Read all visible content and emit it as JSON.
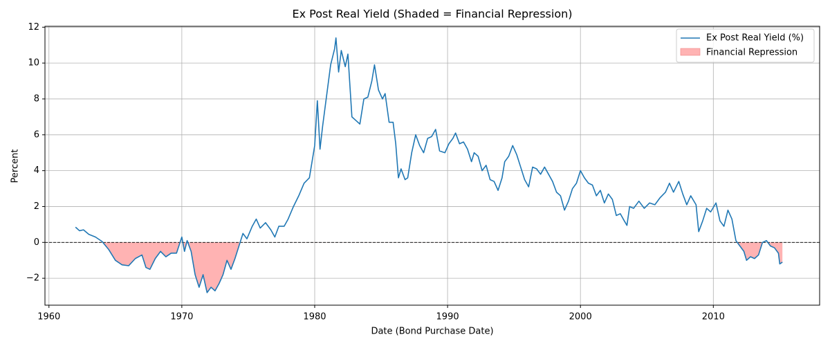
{
  "chart_data": {
    "type": "line",
    "title": "Ex Post Real Yield (Shaded = Financial Repression)",
    "xlabel": "Date (Bond Purchase Date)",
    "ylabel": "Percent",
    "x": [
      1962.0,
      1962.3,
      1962.6,
      1963.0,
      1963.5,
      1964.0,
      1964.5,
      1965.0,
      1965.5,
      1966.0,
      1966.5,
      1967.0,
      1967.3,
      1967.6,
      1968.0,
      1968.4,
      1968.8,
      1969.2,
      1969.6,
      1970.0,
      1970.2,
      1970.4,
      1970.7,
      1971.0,
      1971.3,
      1971.6,
      1971.9,
      1972.2,
      1972.5,
      1972.8,
      1973.1,
      1973.4,
      1973.7,
      1974.0,
      1974.3,
      1974.6,
      1974.9,
      1975.3,
      1975.6,
      1975.9,
      1976.3,
      1976.7,
      1977.0,
      1977.3,
      1977.7,
      1978.0,
      1978.4,
      1978.8,
      1979.2,
      1979.6,
      1980.0,
      1980.2,
      1980.4,
      1980.6,
      1980.9,
      1981.2,
      1981.5,
      1981.6,
      1981.8,
      1982.0,
      1982.3,
      1982.5,
      1982.8,
      1983.1,
      1983.4,
      1983.7,
      1984.0,
      1984.3,
      1984.5,
      1984.8,
      1985.1,
      1985.3,
      1985.6,
      1985.9,
      1986.1,
      1986.3,
      1986.5,
      1986.8,
      1987.0,
      1987.3,
      1987.6,
      1987.9,
      1988.2,
      1988.5,
      1988.8,
      1989.1,
      1989.4,
      1989.8,
      1990.1,
      1990.4,
      1990.6,
      1990.9,
      1991.2,
      1991.5,
      1991.8,
      1992.0,
      1992.3,
      1992.6,
      1992.9,
      1993.2,
      1993.5,
      1993.8,
      1994.1,
      1994.3,
      1994.6,
      1994.9,
      1995.2,
      1995.5,
      1995.8,
      1996.1,
      1996.4,
      1996.7,
      1997.0,
      1997.3,
      1997.6,
      1997.9,
      1998.2,
      1998.5,
      1998.8,
      1999.1,
      1999.4,
      1999.7,
      2000.0,
      2000.3,
      2000.6,
      2000.9,
      2001.2,
      2001.5,
      2001.8,
      2002.1,
      2002.4,
      2002.7,
      2003.0,
      2003.3,
      2003.5,
      2003.7,
      2004.0,
      2004.4,
      2004.8,
      2005.2,
      2005.6,
      2006.0,
      2006.4,
      2006.7,
      2007.0,
      2007.4,
      2007.7,
      2008.0,
      2008.3,
      2008.7,
      2008.9,
      2009.2,
      2009.5,
      2009.8,
      2010.2,
      2010.5,
      2010.8,
      2011.1,
      2011.4,
      2011.7,
      2012.0,
      2012.3,
      2012.5,
      2012.8,
      2013.1,
      2013.4,
      2013.7,
      2014.0,
      2014.3,
      2014.6,
      2014.9,
      2015.0,
      2015.2
    ],
    "series": [
      {
        "name": "Ex Post Real Yield (%)",
        "color": "#1f77b4",
        "values": [
          0.85,
          0.65,
          0.7,
          0.45,
          0.3,
          0.05,
          -0.4,
          -1.0,
          -1.25,
          -1.3,
          -0.9,
          -0.7,
          -1.4,
          -1.5,
          -0.9,
          -0.5,
          -0.8,
          -0.6,
          -0.6,
          0.3,
          -0.5,
          0.1,
          -0.5,
          -1.8,
          -2.5,
          -1.8,
          -2.8,
          -2.5,
          -2.7,
          -2.3,
          -1.8,
          -1.0,
          -1.5,
          -0.9,
          -0.2,
          0.5,
          0.2,
          0.9,
          1.3,
          0.8,
          1.1,
          0.7,
          0.3,
          0.9,
          0.9,
          1.3,
          2.0,
          2.6,
          3.3,
          3.6,
          5.4,
          7.9,
          5.2,
          6.5,
          8.2,
          9.9,
          10.8,
          11.4,
          9.5,
          10.7,
          9.8,
          10.5,
          7.0,
          6.8,
          6.6,
          8.0,
          8.1,
          9.0,
          9.9,
          8.5,
          8.0,
          8.3,
          6.7,
          6.7,
          5.5,
          3.6,
          4.1,
          3.5,
          3.6,
          5.0,
          6.0,
          5.4,
          5.0,
          5.8,
          5.9,
          6.3,
          5.1,
          5.0,
          5.5,
          5.8,
          6.1,
          5.5,
          5.6,
          5.2,
          4.5,
          5.0,
          4.8,
          4.0,
          4.3,
          3.5,
          3.4,
          2.9,
          3.6,
          4.5,
          4.8,
          5.4,
          4.9,
          4.2,
          3.5,
          3.1,
          4.2,
          4.1,
          3.8,
          4.2,
          3.8,
          3.4,
          2.8,
          2.6,
          1.8,
          2.3,
          3.0,
          3.3,
          4.0,
          3.6,
          3.3,
          3.2,
          2.6,
          2.9,
          2.2,
          2.7,
          2.4,
          1.5,
          1.6,
          1.2,
          0.95,
          2.0,
          1.9,
          2.3,
          1.9,
          2.2,
          2.1,
          2.5,
          2.8,
          3.3,
          2.8,
          3.4,
          2.7,
          2.1,
          2.6,
          2.1,
          0.6,
          1.2,
          1.9,
          1.7,
          2.2,
          1.2,
          0.9,
          1.8,
          1.3,
          0.1,
          -0.2,
          -0.5,
          -1.0,
          -0.8,
          -0.9,
          -0.7,
          0.0,
          0.1,
          -0.2,
          -0.3,
          -0.6,
          -1.2,
          -1.1
        ]
      }
    ],
    "shade": {
      "name": "Financial Repression",
      "color": "#ffb3b3"
    },
    "hline": 0,
    "xlim": [
      1959.7,
      2018
    ],
    "xticks": [
      1960,
      1970,
      1980,
      1990,
      2000,
      2010
    ],
    "ylim": [
      -3.5,
      12.05
    ],
    "yticks": [
      {
        "value": -2,
        "label": "−2"
      },
      0,
      2,
      4,
      6,
      8,
      10,
      12
    ],
    "grid": true,
    "legend": "upper right"
  }
}
